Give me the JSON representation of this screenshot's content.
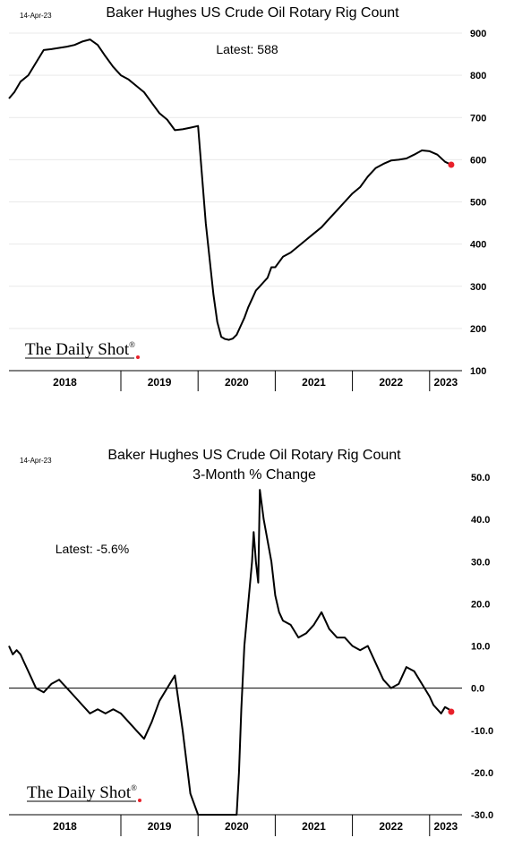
{
  "chart_data": [
    {
      "type": "line",
      "date_label": "14-Apr-23",
      "title": "Baker Hughes US Crude Oil Rotary Rig Count",
      "annotation": "Latest:  588",
      "watermark": "The Daily Shot",
      "watermark_mark": "®",
      "xlabels": [
        "2018",
        "2019",
        "2020",
        "2021",
        "2022",
        "2023"
      ],
      "year_breaks": [
        2019,
        2020,
        2021,
        2022,
        2023
      ],
      "xlim": [
        2017.55,
        2023.42
      ],
      "ylim": [
        100,
        900
      ],
      "yticks": [
        100,
        200,
        300,
        400,
        500,
        600,
        700,
        800,
        900
      ],
      "ytick_labels": [
        "100",
        "200",
        "300",
        "400",
        "500",
        "600",
        "700",
        "800",
        "900"
      ],
      "grid": true,
      "latest_marker_color": "#e8202a",
      "x": [
        2017.55,
        2017.62,
        2017.7,
        2017.8,
        2017.9,
        2018.0,
        2018.1,
        2018.2,
        2018.3,
        2018.4,
        2018.5,
        2018.6,
        2018.7,
        2018.8,
        2018.9,
        2019.0,
        2019.1,
        2019.2,
        2019.3,
        2019.4,
        2019.5,
        2019.6,
        2019.7,
        2019.8,
        2019.9,
        2020.0,
        2020.1,
        2020.2,
        2020.25,
        2020.3,
        2020.35,
        2020.4,
        2020.45,
        2020.5,
        2020.55,
        2020.6,
        2020.65,
        2020.7,
        2020.75,
        2020.8,
        2020.85,
        2020.9,
        2020.95,
        2021.0,
        2021.1,
        2021.2,
        2021.3,
        2021.4,
        2021.5,
        2021.6,
        2021.7,
        2021.8,
        2021.9,
        2022.0,
        2022.1,
        2022.2,
        2022.3,
        2022.4,
        2022.5,
        2022.6,
        2022.7,
        2022.8,
        2022.9,
        2023.0,
        2023.1,
        2023.2,
        2023.28
      ],
      "values": [
        745,
        760,
        785,
        800,
        830,
        860,
        862,
        865,
        868,
        872,
        880,
        885,
        872,
        845,
        820,
        800,
        790,
        775,
        760,
        735,
        710,
        695,
        670,
        672,
        676,
        680,
        450,
        280,
        215,
        180,
        175,
        173,
        176,
        185,
        205,
        225,
        250,
        270,
        290,
        300,
        310,
        320,
        345,
        345,
        370,
        380,
        395,
        410,
        425,
        440,
        460,
        480,
        500,
        520,
        535,
        560,
        580,
        590,
        598,
        600,
        603,
        612,
        622,
        620,
        612,
        595,
        588
      ]
    },
    {
      "type": "line",
      "date_label": "14-Apr-23",
      "title": "Baker Hughes US Crude Oil Rotary Rig Count",
      "subtitle": "3-Month % Change",
      "annotation": "Latest:  -5.6%",
      "watermark": "The Daily Shot",
      "watermark_mark": "®",
      "xlabels": [
        "2018",
        "2019",
        "2020",
        "2021",
        "2022",
        "2023"
      ],
      "year_breaks": [
        2019,
        2020,
        2021,
        2022,
        2023
      ],
      "xlim": [
        2017.55,
        2023.42
      ],
      "ylim": [
        -30,
        50
      ],
      "yticks": [
        -30,
        -20,
        -10,
        0,
        10,
        20,
        30,
        40,
        50
      ],
      "ytick_labels": [
        "-30.0",
        "-20.0",
        "-10.0",
        "0.0",
        "10.0",
        "20.0",
        "30.0",
        "40.0",
        "50.0"
      ],
      "grid": false,
      "latest_marker_color": "#e8202a",
      "x": [
        2017.55,
        2017.6,
        2017.65,
        2017.7,
        2017.75,
        2017.8,
        2017.85,
        2017.9,
        2018.0,
        2018.1,
        2018.2,
        2018.3,
        2018.4,
        2018.5,
        2018.6,
        2018.7,
        2018.8,
        2018.9,
        2019.0,
        2019.1,
        2019.2,
        2019.3,
        2019.4,
        2019.5,
        2019.6,
        2019.7,
        2019.8,
        2019.9,
        2020.0,
        2020.05,
        2020.1,
        2020.13,
        2020.16,
        2020.5,
        2020.53,
        2020.56,
        2020.6,
        2020.65,
        2020.7,
        2020.72,
        2020.75,
        2020.78,
        2020.8,
        2020.85,
        2020.9,
        2020.95,
        2021.0,
        2021.05,
        2021.1,
        2021.2,
        2021.3,
        2021.4,
        2021.5,
        2021.6,
        2021.7,
        2021.8,
        2021.9,
        2022.0,
        2022.1,
        2022.2,
        2022.3,
        2022.4,
        2022.5,
        2022.6,
        2022.7,
        2022.8,
        2022.9,
        2023.0,
        2023.05,
        2023.1,
        2023.15,
        2023.2,
        2023.25,
        2023.28
      ],
      "values": [
        10,
        8,
        9,
        8,
        6,
        4,
        2,
        0,
        -1,
        1,
        2,
        0,
        -2,
        -4,
        -6,
        -5,
        -6,
        -5,
        -6,
        -8,
        -10,
        -12,
        -8,
        -3,
        0,
        3,
        -10,
        -25,
        -30,
        -30,
        -30,
        -30,
        -30,
        -30,
        -20,
        -5,
        10,
        20,
        30,
        37,
        30,
        25,
        47,
        40,
        35,
        30,
        22,
        18,
        16,
        15,
        12,
        13,
        15,
        18,
        14,
        12,
        12,
        10,
        9,
        10,
        6,
        2,
        0,
        1,
        5,
        4,
        1,
        -2,
        -4,
        -5,
        -6,
        -4.5,
        -5,
        -5.6
      ]
    }
  ]
}
